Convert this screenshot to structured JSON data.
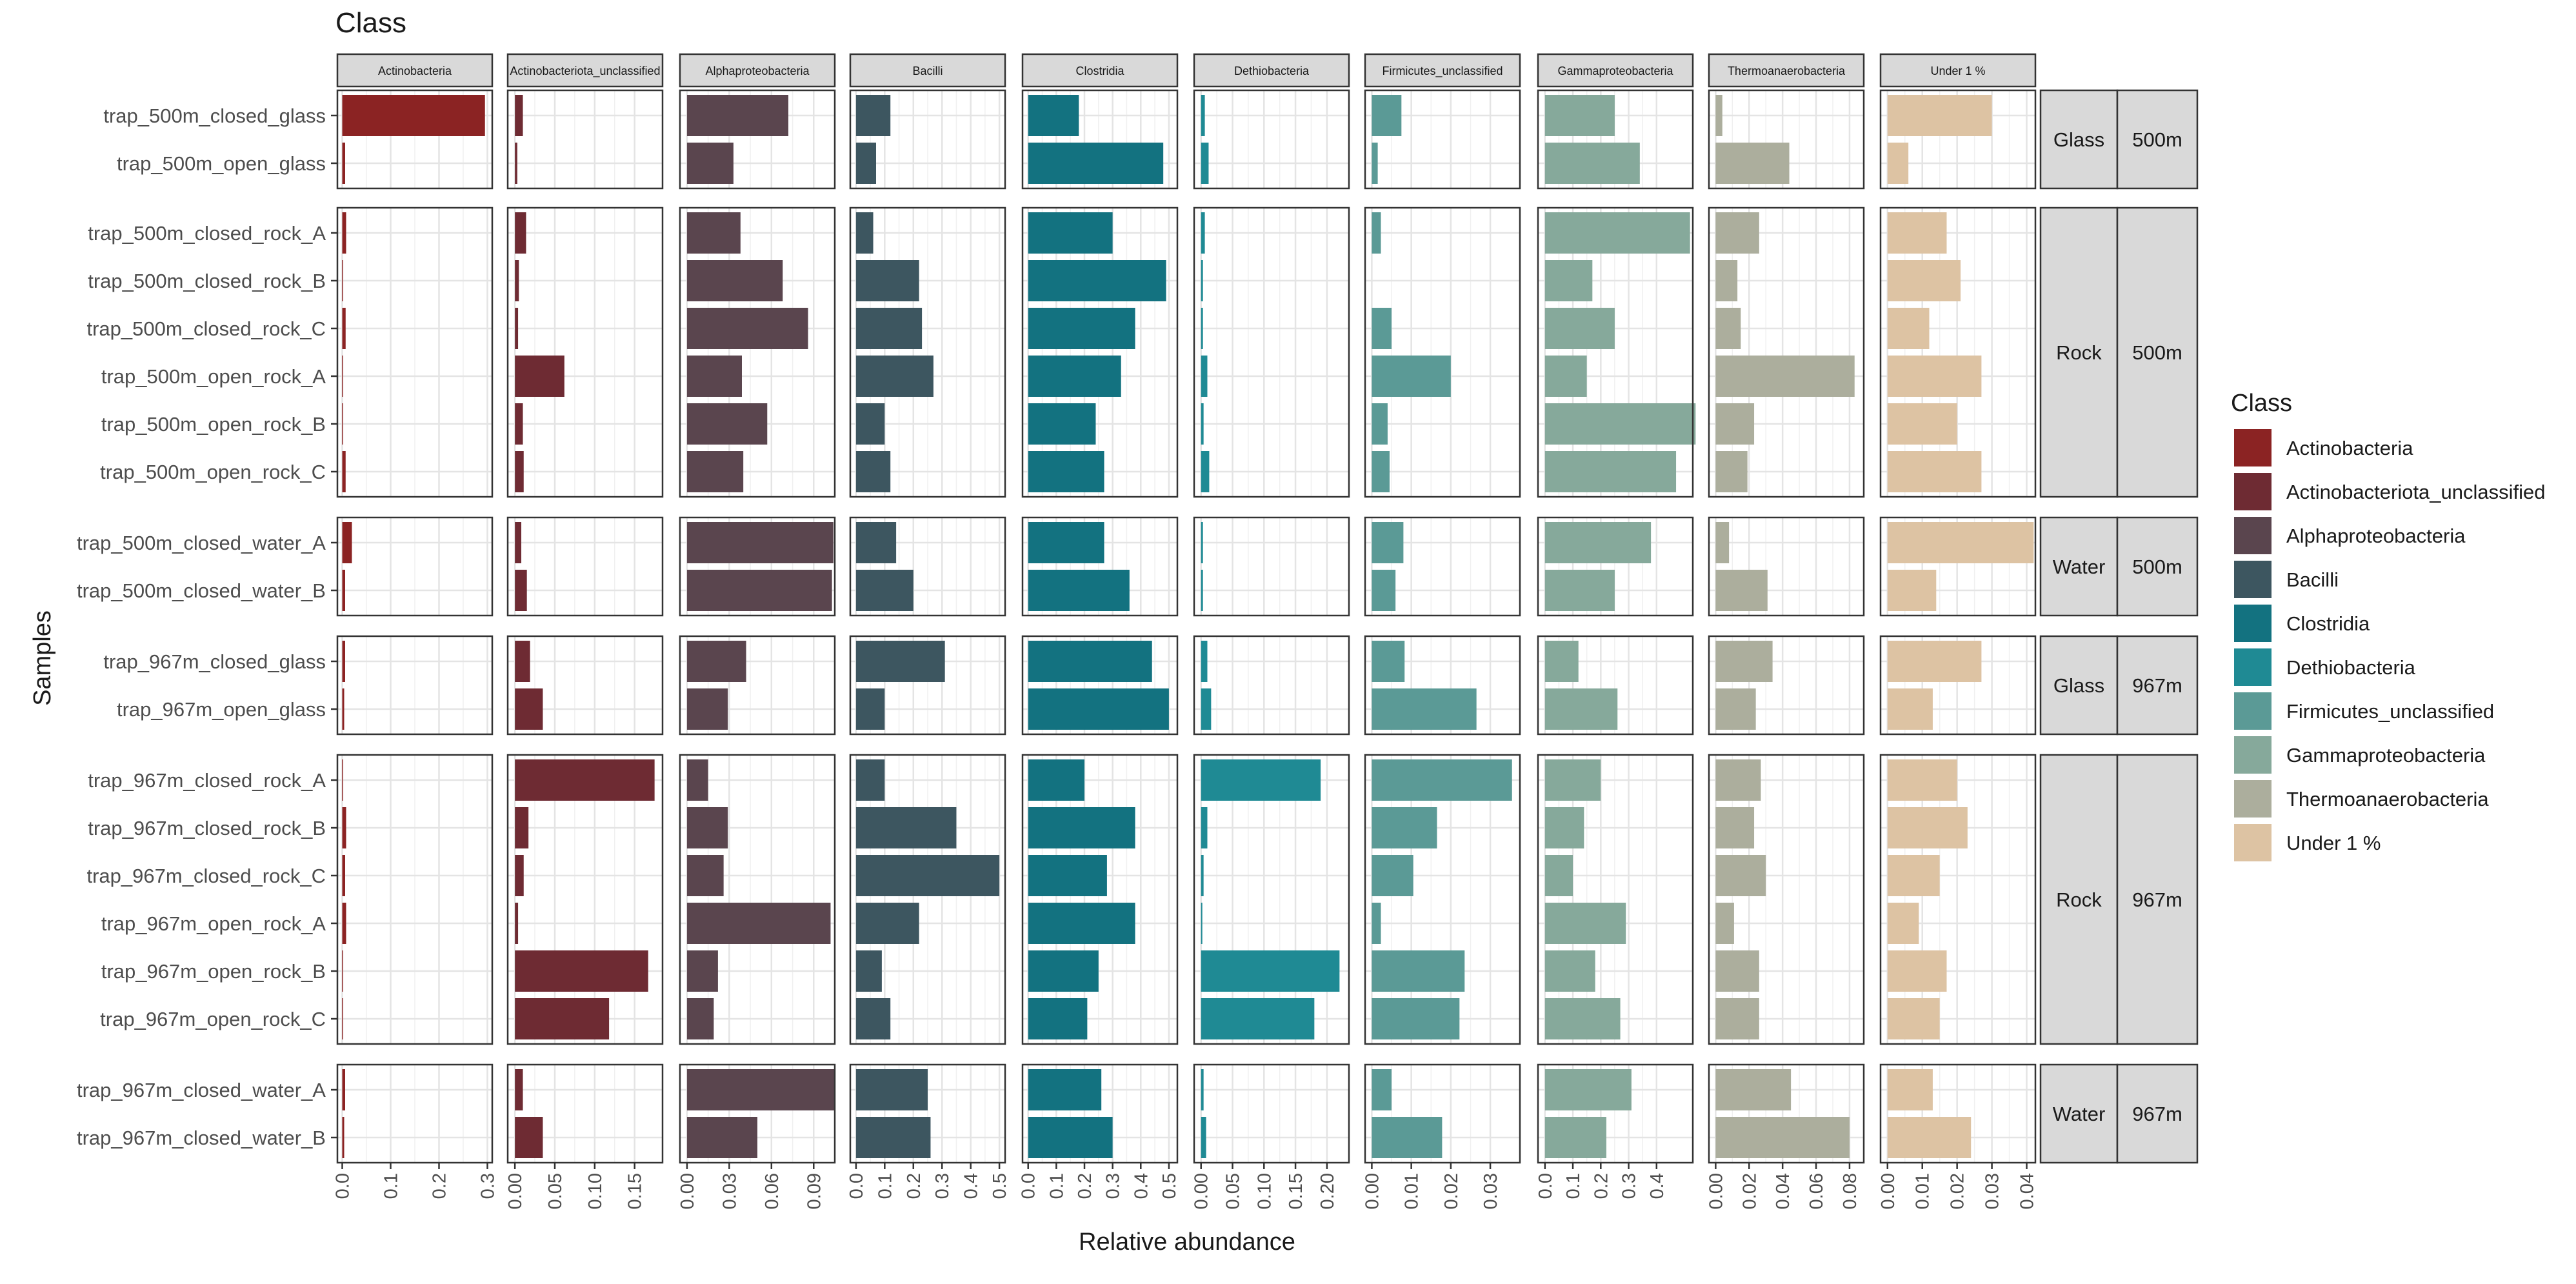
{
  "chart_data": {
    "type": "bar",
    "orientation": "horizontal",
    "facet_title": "Class",
    "xlabel": "Relative abundance",
    "ylabel": "Samples",
    "legend": {
      "title": "Class",
      "position": "right",
      "entries": [
        {
          "name": "Actinobacteria",
          "color": "#8B2323"
        },
        {
          "name": "Actinobacteriota_unclassified",
          "color": "#6E2B33"
        },
        {
          "name": "Alphaproteobacteria",
          "color": "#5A454E"
        },
        {
          "name": "Bacilli",
          "color": "#3D5660"
        },
        {
          "name": "Clostridia",
          "color": "#137280"
        },
        {
          "name": "Dethiobacteria",
          "color": "#1F8A94"
        },
        {
          "name": "Firmicutes_unclassified",
          "color": "#5B9A96"
        },
        {
          "name": "Gammaproteobacteria",
          "color": "#86A99B"
        },
        {
          "name": "Thermoanaerobacteria",
          "color": "#ACAE9D"
        },
        {
          "name": "Under 1 %",
          "color": "#DDC3A3"
        }
      ]
    },
    "columns": [
      {
        "name": "Actinobacteria",
        "xlim": [
          -0.01,
          0.31
        ],
        "ticks": [
          0.0,
          0.1,
          0.2,
          0.3
        ],
        "tick_labels": [
          "0.0",
          "0.1",
          "0.2",
          "0.3"
        ]
      },
      {
        "name": "Actinobacteriota_unclassified",
        "xlim": [
          -0.009,
          0.185
        ],
        "ticks": [
          0.0,
          0.05,
          0.1,
          0.15
        ],
        "tick_labels": [
          "0.00",
          "0.05",
          "0.10",
          "0.15"
        ]
      },
      {
        "name": "Alphaproteobacteria",
        "xlim": [
          -0.005,
          0.105
        ],
        "ticks": [
          0.0,
          0.03,
          0.06,
          0.09
        ],
        "tick_labels": [
          "0.00",
          "0.03",
          "0.06",
          "0.09"
        ]
      },
      {
        "name": "Bacilli",
        "xlim": [
          -0.02,
          0.52
        ],
        "ticks": [
          0.0,
          0.1,
          0.2,
          0.3,
          0.4,
          0.5
        ],
        "tick_labels": [
          "0.0",
          "0.1",
          "0.2",
          "0.3",
          "0.4",
          "0.5"
        ]
      },
      {
        "name": "Clostridia",
        "xlim": [
          -0.02,
          0.53
        ],
        "ticks": [
          0.0,
          0.1,
          0.2,
          0.3,
          0.4,
          0.5
        ],
        "tick_labels": [
          "0.0",
          "0.1",
          "0.2",
          "0.3",
          "0.4",
          "0.5"
        ]
      },
      {
        "name": "Dethiobacteria",
        "xlim": [
          -0.011,
          0.235
        ],
        "ticks": [
          0.0,
          0.05,
          0.1,
          0.15,
          0.2
        ],
        "tick_labels": [
          "0.00",
          "0.05",
          "0.10",
          "0.15",
          "0.20"
        ]
      },
      {
        "name": "Firmicutes_unclassified",
        "xlim": [
          -0.0017,
          0.0375
        ],
        "ticks": [
          0.0,
          0.01,
          0.02,
          0.03
        ],
        "tick_labels": [
          "0.00",
          "0.01",
          "0.02",
          "0.03"
        ]
      },
      {
        "name": "Gammaproteobacteria",
        "xlim": [
          -0.025,
          0.53
        ],
        "ticks": [
          0.0,
          0.1,
          0.2,
          0.3,
          0.4
        ],
        "tick_labels": [
          "0.0",
          "0.1",
          "0.2",
          "0.3",
          "0.4"
        ]
      },
      {
        "name": "Thermoanaerobacteria",
        "xlim": [
          -0.004,
          0.0885
        ],
        "ticks": [
          0.0,
          0.02,
          0.04,
          0.06,
          0.08
        ],
        "tick_labels": [
          "0.00",
          "0.02",
          "0.04",
          "0.06",
          "0.08"
        ]
      },
      {
        "name": "Under 1 %",
        "xlim": [
          -0.002,
          0.0425
        ],
        "ticks": [
          0.0,
          0.01,
          0.02,
          0.03,
          0.04
        ],
        "tick_labels": [
          "0.00",
          "0.01",
          "0.02",
          "0.03",
          "0.04"
        ]
      }
    ],
    "row_groups": [
      {
        "material": "Glass",
        "depth": "500m",
        "samples": [
          {
            "name": "trap_500m_closed_glass",
            "values": [
              0.295,
              0.01,
              0.072,
              0.12,
              0.18,
              0.006,
              0.0075,
              0.25,
              0.004,
              0.03
            ]
          },
          {
            "name": "trap_500m_open_glass",
            "values": [
              0.006,
              0.003,
              0.033,
              0.07,
              0.48,
              0.012,
              0.0015,
              0.34,
              0.044,
              0.006
            ]
          }
        ]
      },
      {
        "material": "Rock",
        "depth": "500m",
        "samples": [
          {
            "name": "trap_500m_closed_rock_A",
            "values": [
              0.008,
              0.014,
              0.038,
              0.06,
              0.3,
              0.006,
              0.0023,
              0.52,
              0.026,
              0.017
            ]
          },
          {
            "name": "trap_500m_closed_rock_B",
            "values": [
              0.002,
              0.005,
              0.068,
              0.22,
              0.49,
              0.003,
              0.0,
              0.17,
              0.013,
              0.021
            ]
          },
          {
            "name": "trap_500m_closed_rock_C",
            "values": [
              0.007,
              0.004,
              0.086,
              0.23,
              0.38,
              0.003,
              0.005,
              0.25,
              0.015,
              0.012
            ]
          },
          {
            "name": "trap_500m_open_rock_A",
            "values": [
              0.002,
              0.062,
              0.039,
              0.27,
              0.33,
              0.01,
              0.02,
              0.15,
              0.083,
              0.027
            ]
          },
          {
            "name": "trap_500m_open_rock_B",
            "values": [
              0.002,
              0.01,
              0.057,
              0.1,
              0.24,
              0.004,
              0.004,
              0.54,
              0.023,
              0.02
            ]
          },
          {
            "name": "trap_500m_open_rock_C",
            "values": [
              0.007,
              0.011,
              0.04,
              0.12,
              0.27,
              0.013,
              0.0045,
              0.47,
              0.019,
              0.027
            ]
          }
        ]
      },
      {
        "material": "Water",
        "depth": "500m",
        "samples": [
          {
            "name": "trap_500m_closed_water_A",
            "values": [
              0.02,
              0.008,
              0.104,
              0.14,
              0.27,
              0.003,
              0.008,
              0.38,
              0.008,
              0.042
            ]
          },
          {
            "name": "trap_500m_closed_water_B",
            "values": [
              0.006,
              0.015,
              0.103,
              0.2,
              0.36,
              0.003,
              0.006,
              0.25,
              0.031,
              0.014
            ]
          }
        ]
      },
      {
        "material": "Glass",
        "depth": "967m",
        "samples": [
          {
            "name": "trap_967m_closed_glass",
            "values": [
              0.006,
              0.019,
              0.042,
              0.31,
              0.44,
              0.01,
              0.0083,
              0.12,
              0.034,
              0.027
            ]
          },
          {
            "name": "trap_967m_open_glass",
            "values": [
              0.004,
              0.035,
              0.029,
              0.1,
              0.5,
              0.016,
              0.0265,
              0.26,
              0.024,
              0.013
            ]
          }
        ]
      },
      {
        "material": "Rock",
        "depth": "967m",
        "samples": [
          {
            "name": "trap_967m_closed_rock_A",
            "values": [
              0.002,
              0.175,
              0.015,
              0.1,
              0.2,
              0.19,
              0.0355,
              0.2,
              0.027,
              0.02
            ]
          },
          {
            "name": "trap_967m_closed_rock_B",
            "values": [
              0.008,
              0.017,
              0.029,
              0.35,
              0.38,
              0.01,
              0.0165,
              0.14,
              0.023,
              0.023
            ]
          },
          {
            "name": "trap_967m_closed_rock_C",
            "values": [
              0.006,
              0.011,
              0.026,
              0.5,
              0.28,
              0.004,
              0.0105,
              0.1,
              0.03,
              0.015
            ]
          },
          {
            "name": "trap_967m_open_rock_A",
            "values": [
              0.008,
              0.004,
              0.102,
              0.22,
              0.38,
              0.002,
              0.0023,
              0.29,
              0.011,
              0.009
            ]
          },
          {
            "name": "trap_967m_open_rock_B",
            "values": [
              0.002,
              0.167,
              0.022,
              0.09,
              0.25,
              0.22,
              0.0235,
              0.18,
              0.026,
              0.017
            ]
          },
          {
            "name": "trap_967m_open_rock_C",
            "values": [
              0.002,
              0.118,
              0.019,
              0.12,
              0.21,
              0.18,
              0.0222,
              0.27,
              0.026,
              0.015
            ]
          }
        ]
      },
      {
        "material": "Water",
        "depth": "967m",
        "samples": [
          {
            "name": "trap_967m_closed_water_A",
            "values": [
              0.006,
              0.01,
              0.105,
              0.25,
              0.26,
              0.004,
              0.005,
              0.31,
              0.045,
              0.013
            ]
          },
          {
            "name": "trap_967m_closed_water_B",
            "values": [
              0.004,
              0.035,
              0.05,
              0.26,
              0.3,
              0.008,
              0.0178,
              0.22,
              0.08,
              0.024
            ]
          }
        ]
      }
    ]
  }
}
